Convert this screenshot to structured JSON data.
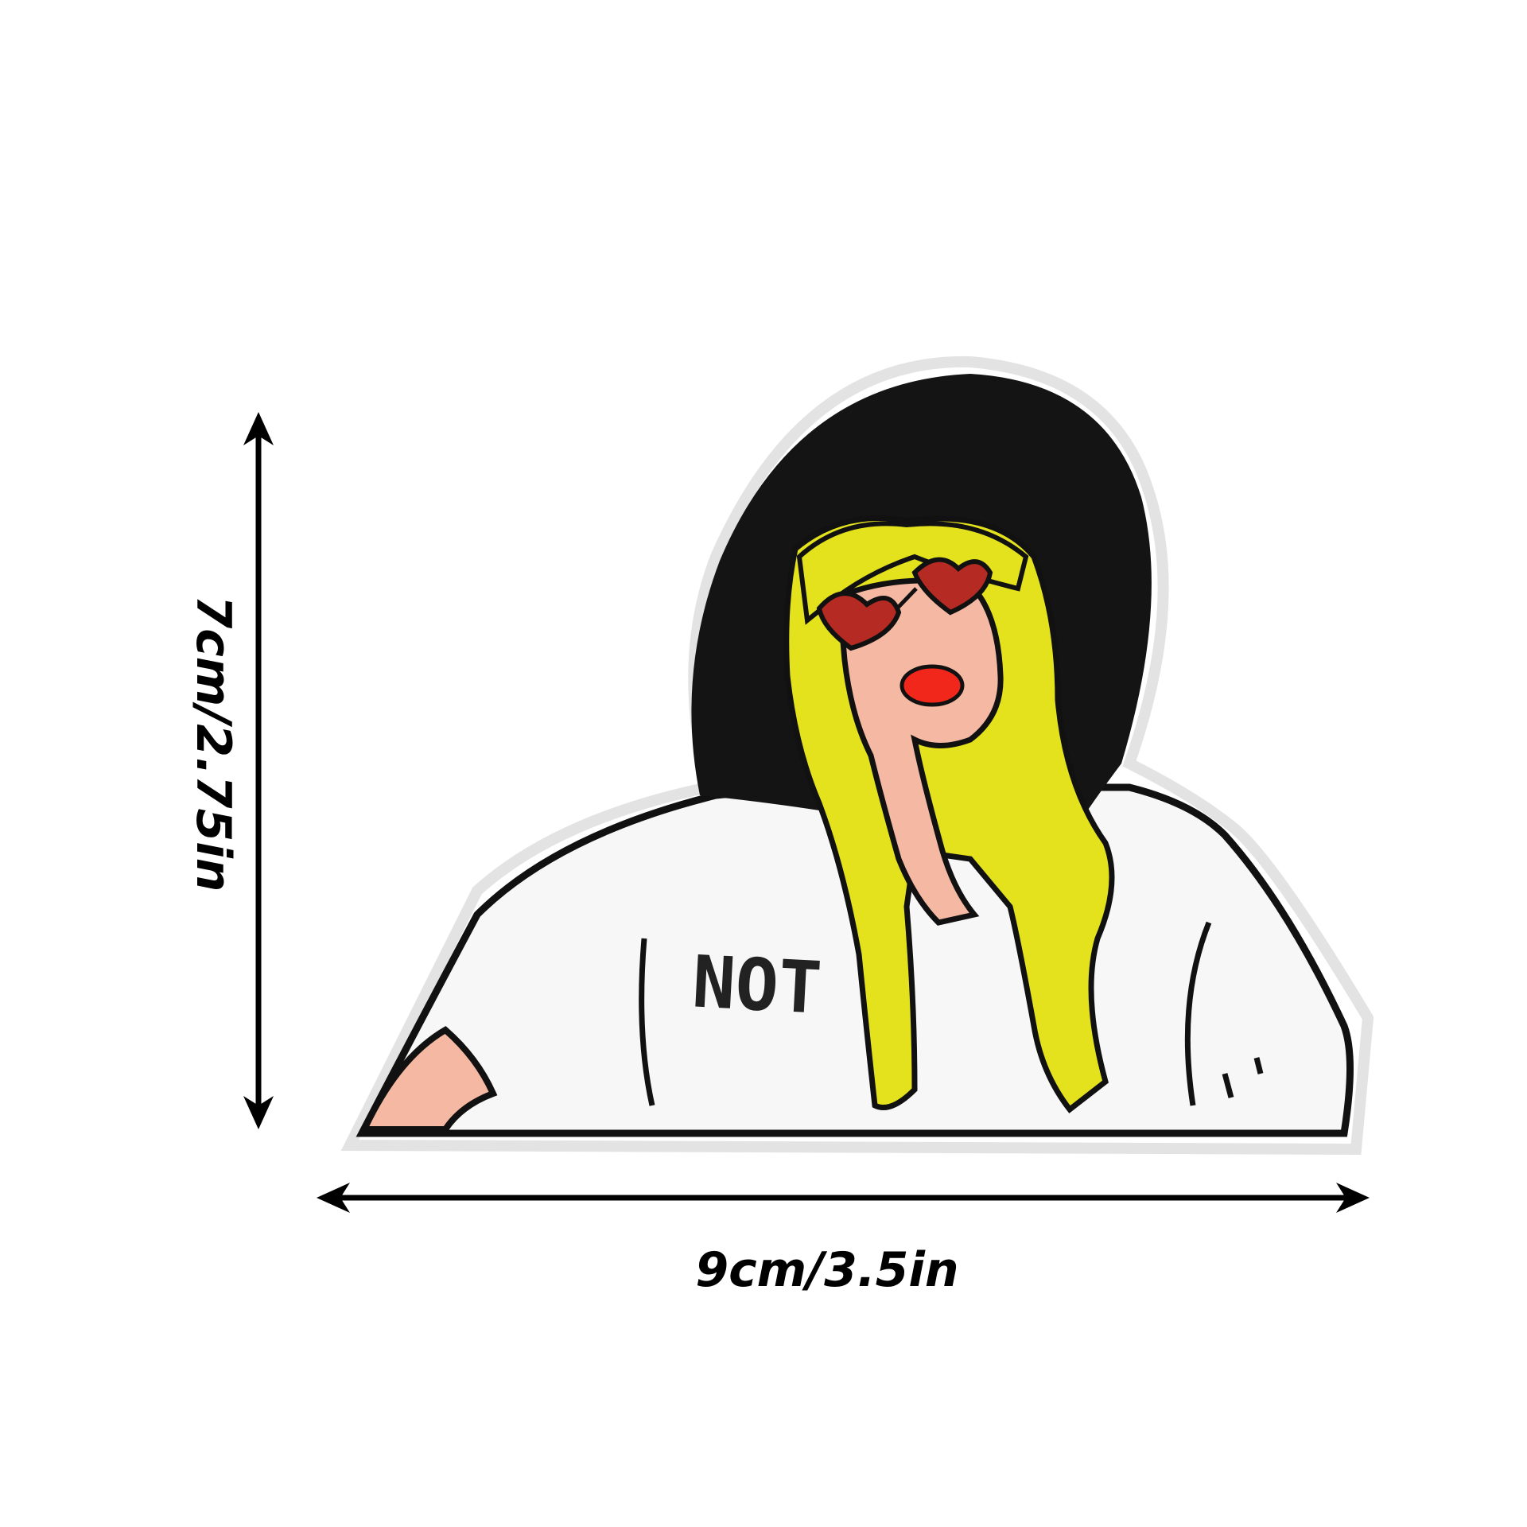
{
  "dimensions": {
    "width_label": "9cm/3.5in",
    "height_label": "7cm/2.75in"
  },
  "patch": {
    "shirt_text": "NOT"
  },
  "colors": {
    "background": "#ffffff",
    "outline": "#111111",
    "hat": "#141414",
    "hair": "#e3e21d",
    "skin": "#f5b8a2",
    "lips": "#f2271c",
    "glasses": "#b52a22",
    "shirt": "#f7f7f7",
    "arrow": "#000000"
  }
}
